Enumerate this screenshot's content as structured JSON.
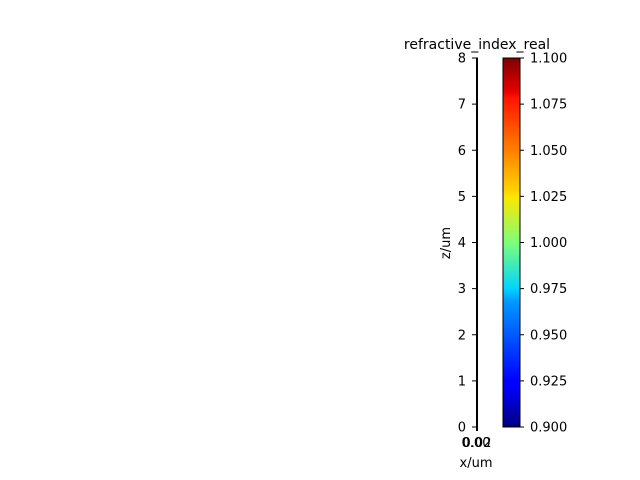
{
  "chart_data": {
    "type": "heatmap",
    "title": "refractive_index_real",
    "xlabel": "x/um",
    "ylabel": "z/um",
    "x_tick_labels": [
      "0.00",
      "0.02"
    ],
    "y_ticks": [
      0,
      1,
      2,
      3,
      4,
      5,
      6,
      7,
      8
    ],
    "y_tick_labels": [
      "0",
      "1",
      "2",
      "3",
      "4",
      "5",
      "6",
      "7",
      "8"
    ],
    "ylim": [
      0,
      8
    ],
    "colormap": "jet",
    "colorbar": {
      "range": [
        0.9,
        1.1
      ],
      "ticks": [
        0.9,
        0.925,
        0.95,
        0.975,
        1.0,
        1.025,
        1.05,
        1.075,
        1.1
      ],
      "tick_labels": [
        "0.900",
        "0.925",
        "0.950",
        "0.975",
        "1.000",
        "1.025",
        "1.050",
        "1.075",
        "1.100"
      ]
    },
    "grid": false
  }
}
